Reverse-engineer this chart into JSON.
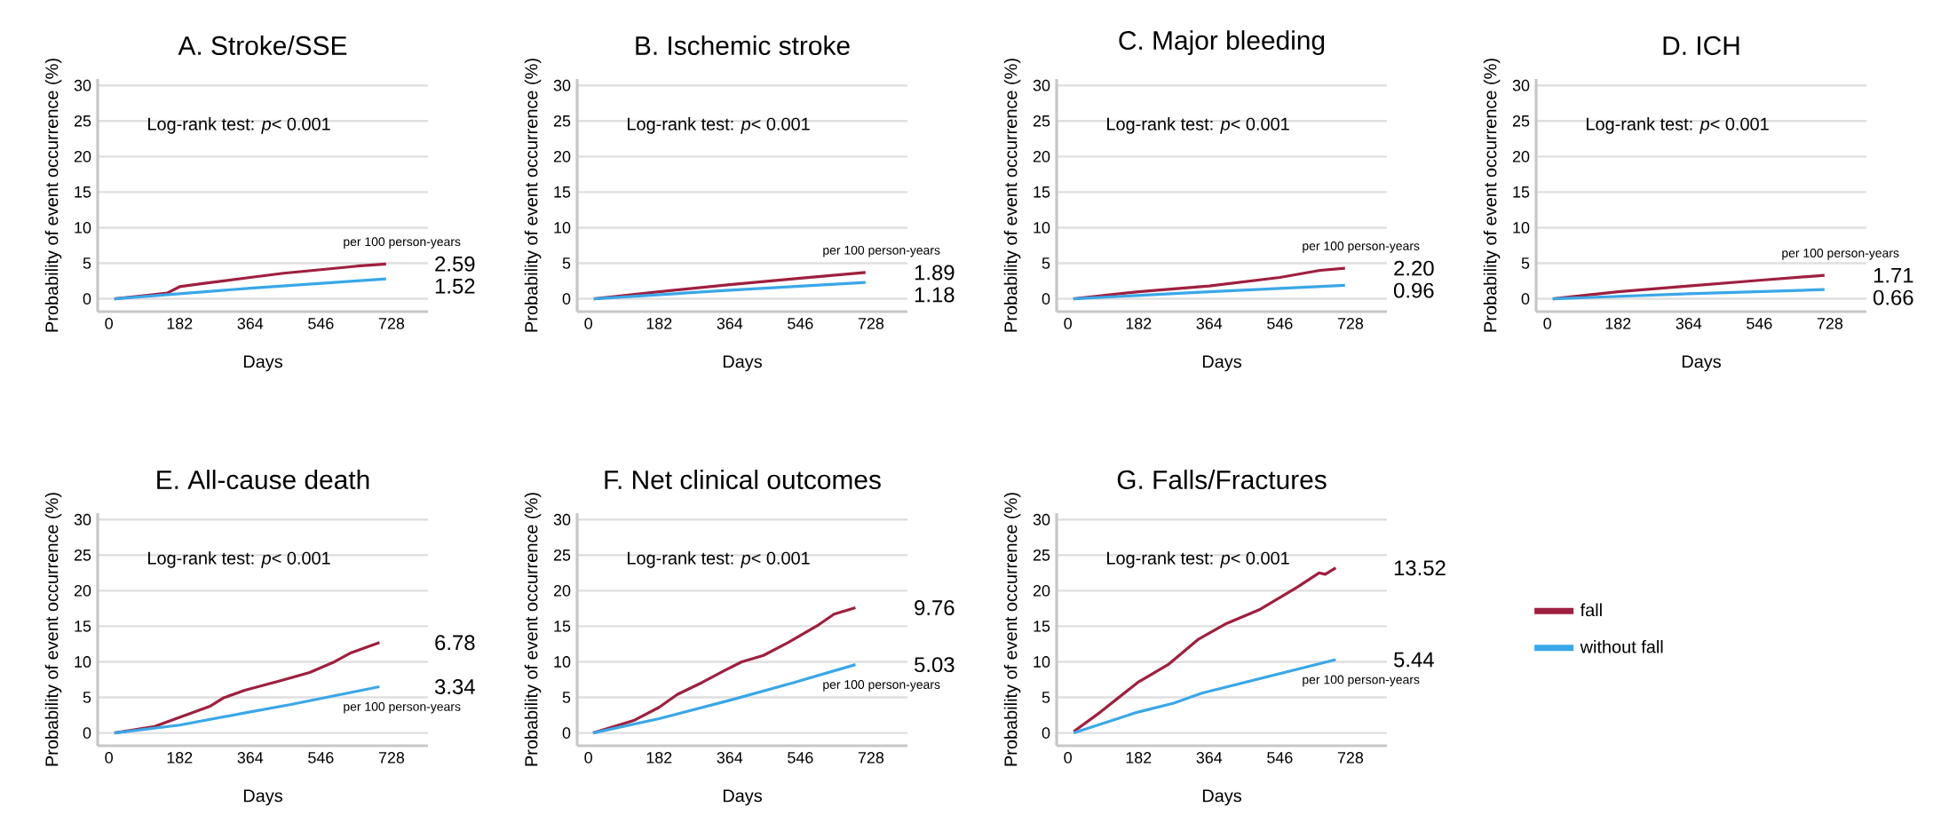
{
  "chart_data": [
    {
      "type": "line",
      "title": "A. Stroke/SSE",
      "xlabel": "Days",
      "ylabel": "Probability of event occurrence (%)",
      "xlim": [
        -29,
        822
      ],
      "ylim": [
        -1.8,
        30.9
      ],
      "xticks": [
        0,
        182,
        364,
        546,
        728
      ],
      "yticks": [
        0,
        5,
        10,
        15,
        20,
        25,
        30
      ],
      "grid": "y",
      "series": [
        {
          "color": "#9e1f3f",
          "x": [
            14,
            100,
            150,
            182,
            250,
            364,
            450,
            546,
            640,
            714
          ],
          "values": [
            0,
            0.5,
            0.8,
            1.7,
            2.2,
            3.0,
            3.6,
            4.1,
            4.6,
            4.9
          ]
        },
        {
          "color": "#3aa7e8",
          "x": [
            14,
            364,
            714
          ],
          "values": [
            0,
            1.5,
            2.8
          ]
        }
      ],
      "annotations": [
        "Log-rank test: *p*< 0.001",
        "per 100 person-years",
        "2.59",
        "1.52"
      ]
    },
    {
      "type": "line",
      "title": "B. Ischemic stroke",
      "xlabel": "Days",
      "ylabel": "Probability of event occurrence (%)",
      "xlim": [
        -29,
        822
      ],
      "ylim": [
        -1.8,
        30.9
      ],
      "xticks": [
        0,
        182,
        364,
        546,
        728
      ],
      "yticks": [
        0,
        5,
        10,
        15,
        20,
        25,
        30
      ],
      "grid": "y",
      "series": [
        {
          "color": "#9e1f3f",
          "x": [
            14,
            182,
            364,
            546,
            714
          ],
          "values": [
            0,
            1.0,
            2.0,
            2.9,
            3.7
          ]
        },
        {
          "color": "#3aa7e8",
          "x": [
            14,
            364,
            714
          ],
          "values": [
            0,
            1.2,
            2.3
          ]
        }
      ],
      "annotations": [
        "Log-rank test: *p*< 0.001",
        "per 100 person-years",
        "1.89",
        "1.18"
      ]
    },
    {
      "type": "line",
      "title": "C. Major bleeding",
      "xlabel": "Days",
      "ylabel": "Probability of event occurrence (%)",
      "xlim": [
        -29,
        822
      ],
      "ylim": [
        -1.8,
        30.9
      ],
      "xticks": [
        0,
        182,
        364,
        546,
        728
      ],
      "yticks": [
        0,
        5,
        10,
        15,
        20,
        25,
        30
      ],
      "grid": "y",
      "series": [
        {
          "color": "#9e1f3f",
          "x": [
            14,
            182,
            364,
            546,
            650,
            714
          ],
          "values": [
            0,
            1.0,
            1.8,
            3.0,
            4.0,
            4.3
          ]
        },
        {
          "color": "#3aa7e8",
          "x": [
            14,
            364,
            714
          ],
          "values": [
            0,
            1.0,
            1.9
          ]
        }
      ],
      "annotations": [
        "Log-rank test: *p*< 0.001",
        "per 100 person-years",
        "2.20",
        "0.96"
      ]
    },
    {
      "type": "line",
      "title": "D. ICH",
      "xlabel": "Days",
      "ylabel": "Probability of event occurrence (%)",
      "xlim": [
        -29,
        822
      ],
      "ylim": [
        -1.8,
        30.9
      ],
      "xticks": [
        0,
        182,
        364,
        546,
        728
      ],
      "yticks": [
        0,
        5,
        10,
        15,
        20,
        25,
        30
      ],
      "grid": "y",
      "series": [
        {
          "color": "#9e1f3f",
          "x": [
            14,
            182,
            364,
            546,
            714
          ],
          "values": [
            0,
            1.0,
            1.8,
            2.6,
            3.3
          ]
        },
        {
          "color": "#3aa7e8",
          "x": [
            14,
            364,
            714
          ],
          "values": [
            0,
            0.7,
            1.3
          ]
        }
      ],
      "annotations": [
        "Log-rank test: *p*< 0.001",
        "per 100 person-years",
        "1.71",
        "0.66"
      ]
    },
    {
      "type": "line",
      "title": "E. All-cause death",
      "xlabel": "Days",
      "ylabel": "Probability of event occurrence (%)",
      "xlim": [
        -29,
        822
      ],
      "ylim": [
        -1.8,
        30.9
      ],
      "xticks": [
        0,
        182,
        364,
        546,
        728
      ],
      "yticks": [
        0,
        5,
        10,
        15,
        20,
        25,
        30
      ],
      "grid": "y",
      "series": [
        {
          "color": "#9e1f3f",
          "x": [
            14,
            118,
            182,
            262,
            294,
            350,
            446,
            517,
            581,
            621,
            697
          ],
          "values": [
            0,
            0.9,
            2.2,
            3.8,
            4.9,
            6.0,
            7.4,
            8.5,
            10.0,
            11.2,
            12.7
          ]
        },
        {
          "color": "#3aa7e8",
          "x": [
            14,
            182,
            358,
            469,
            697
          ],
          "values": [
            0,
            1.1,
            2.9,
            4.0,
            6.5
          ]
        }
      ],
      "annotations": [
        "Log-rank test: *p*< 0.001",
        "per 100 person-years",
        "6.78",
        "3.34"
      ]
    },
    {
      "type": "line",
      "title": "F. Net clinical outcomes",
      "xlabel": "Days",
      "ylabel": "Probability of event occurrence (%)",
      "xlim": [
        -29,
        822
      ],
      "ylim": [
        -1.8,
        30.9
      ],
      "xticks": [
        0,
        182,
        364,
        546,
        728
      ],
      "yticks": [
        0,
        5,
        10,
        15,
        20,
        25,
        30
      ],
      "grid": "y",
      "series": [
        {
          "color": "#9e1f3f",
          "x": [
            12,
            119,
            182,
            229,
            293,
            348,
            395,
            451,
            514,
            593,
            633,
            688
          ],
          "values": [
            0,
            1.8,
            3.6,
            5.4,
            7.1,
            8.7,
            10.0,
            10.9,
            12.7,
            15.2,
            16.7,
            17.6
          ]
        },
        {
          "color": "#3aa7e8",
          "x": [
            12,
            182,
            372,
            530,
            688
          ],
          "values": [
            0,
            2.0,
            4.7,
            7.1,
            9.6
          ]
        }
      ],
      "annotations": [
        "Log-rank test: *p*< 0.001",
        "per 100 person-years",
        "9.76",
        "5.03"
      ]
    },
    {
      "type": "line",
      "title": "G. Falls/Fractures",
      "xlabel": "Days",
      "ylabel": "Probability of event occurrence (%)",
      "xlim": [
        -29,
        822
      ],
      "ylim": [
        -1.8,
        30.9
      ],
      "xticks": [
        0,
        182,
        364,
        546,
        728
      ],
      "yticks": [
        0,
        5,
        10,
        15,
        20,
        25,
        30
      ],
      "grid": "y",
      "legend": "right",
      "series": [
        {
          "name": "fall",
          "color": "#9e1f3f",
          "x": [
            15,
            83,
            180,
            258,
            337,
            409,
            496,
            591,
            647,
            663,
            690
          ],
          "values": [
            0.2,
            2.9,
            7.1,
            9.6,
            13.2,
            15.4,
            17.4,
            20.5,
            22.5,
            22.3,
            23.2
          ]
        },
        {
          "name": "without fall",
          "color": "#3aa7e8",
          "x": [
            15,
            178,
            273,
            345,
            690
          ],
          "values": [
            0,
            2.9,
            4.2,
            5.6,
            10.3
          ]
        }
      ],
      "annotations": [
        "Log-rank test: *p*< 0.001",
        "per 100 person-years",
        "13.52",
        "5.44"
      ]
    }
  ]
}
